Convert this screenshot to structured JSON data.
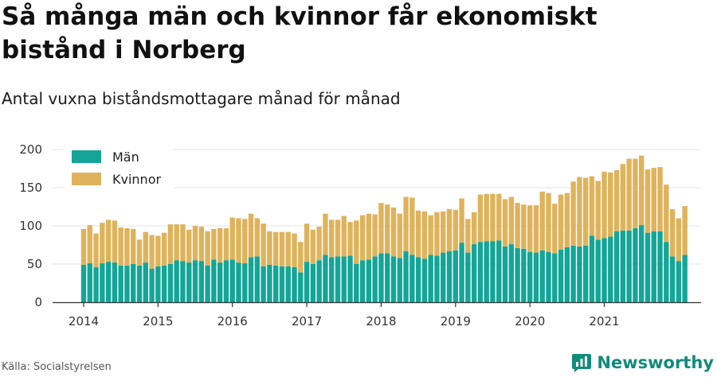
{
  "title": "Så många män och kvinnor får ekonomiskt bistånd i Norberg",
  "subtitle": "Antal vuxna biståndsmottagare månad för månad",
  "source": "Källa: Socialstyrelsen",
  "brand": {
    "name": "Newsworthy",
    "logo_icon": "newsworthy-logo-icon"
  },
  "colors": {
    "men": "#14a597",
    "women": "#deb35b",
    "grid": "#e3e3e3",
    "axis": "#333333"
  },
  "chart_data": {
    "type": "bar",
    "stacked": true,
    "title": "Så många män och kvinnor får ekonomiskt bistånd i Norberg",
    "subtitle": "Antal vuxna biståndsmottagare månad för månad",
    "xlabel": "",
    "ylabel": "",
    "ylim": [
      0,
      200
    ],
    "yticks": [
      0,
      50,
      100,
      150,
      200
    ],
    "xticks": [
      "2014",
      "2015",
      "2016",
      "2017",
      "2018",
      "2019",
      "2020",
      "2021"
    ],
    "grid": true,
    "legend": {
      "placement": "top-left",
      "entries": [
        "Män",
        "Kvinnor"
      ]
    },
    "x_start": "2014-01",
    "x_end": "2021-11",
    "series": [
      {
        "name": "Män",
        "color": "#14a597",
        "values": [
          49,
          51,
          46,
          51,
          53,
          52,
          48,
          48,
          50,
          48,
          52,
          44,
          47,
          48,
          50,
          55,
          54,
          52,
          55,
          54,
          48,
          56,
          52,
          55,
          56,
          52,
          51,
          59,
          60,
          47,
          49,
          48,
          47,
          47,
          46,
          39,
          53,
          50,
          55,
          62,
          59,
          60,
          60,
          61,
          50,
          55,
          56,
          60,
          64,
          64,
          60,
          58,
          67,
          62,
          59,
          57,
          62,
          61,
          65,
          67,
          68,
          78,
          65,
          76,
          79,
          80,
          80,
          81,
          73,
          76,
          71,
          70,
          66,
          65,
          68,
          66,
          64,
          69,
          72,
          74,
          73,
          74,
          87,
          82,
          84,
          86,
          93,
          94,
          94,
          97,
          101,
          91,
          93,
          93,
          79,
          60,
          54,
          62
        ]
      },
      {
        "name": "Kvinnor",
        "color": "#deb35b",
        "values": [
          47,
          50,
          44,
          53,
          55,
          55,
          50,
          49,
          46,
          34,
          40,
          44,
          40,
          43,
          52,
          47,
          48,
          43,
          45,
          45,
          45,
          40,
          45,
          42,
          55,
          58,
          58,
          57,
          50,
          56,
          44,
          44,
          45,
          45,
          44,
          40,
          50,
          45,
          44,
          54,
          49,
          48,
          53,
          44,
          57,
          59,
          60,
          55,
          66,
          64,
          64,
          58,
          71,
          75,
          61,
          62,
          52,
          57,
          54,
          55,
          53,
          58,
          44,
          42,
          62,
          62,
          62,
          61,
          62,
          62,
          59,
          58,
          61,
          62,
          77,
          77,
          65,
          72,
          71,
          84,
          91,
          89,
          78,
          77,
          87,
          84,
          80,
          87,
          94,
          91,
          91,
          83,
          83,
          84,
          75,
          62,
          56,
          64
        ]
      }
    ]
  }
}
